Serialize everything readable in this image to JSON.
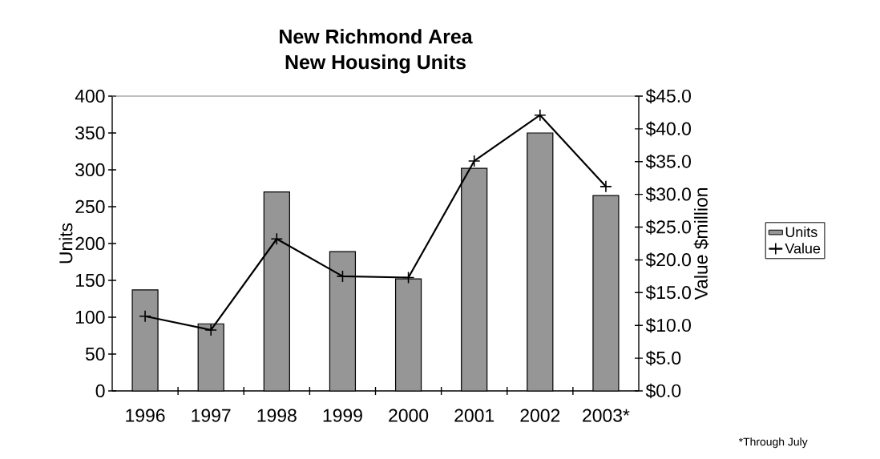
{
  "chart_data": {
    "type": "bar",
    "title": "New Richmond Area\nNew Housing Units",
    "categories": [
      "1996",
      "1997",
      "1998",
      "1999",
      "2000",
      "2001",
      "2002",
      "2003*"
    ],
    "series": [
      {
        "name": "Units",
        "color": "#969696",
        "values": [
          137,
          91,
          270,
          189,
          152,
          302,
          350,
          265
        ]
      },
      {
        "name": "Value",
        "type": "line",
        "axis": "y2",
        "color": "#000000",
        "marker": "cross",
        "values": [
          11.4,
          9.3,
          23.2,
          17.5,
          17.3,
          35.1,
          42.1,
          31.2
        ]
      }
    ],
    "ylabel": "Units",
    "y2label": "Value $million",
    "ylim": [
      0,
      400
    ],
    "yticks": [
      0,
      50,
      100,
      150,
      200,
      250,
      300,
      350,
      400
    ],
    "y2lim": [
      0,
      45
    ],
    "y2ticks": [
      {
        "value": 0,
        "label": "$0.0"
      },
      {
        "value": 5,
        "label": "$5.0"
      },
      {
        "value": 10,
        "label": "$10.0"
      },
      {
        "value": 15,
        "label": "$15.0"
      },
      {
        "value": 20,
        "label": "$20.0"
      },
      {
        "value": 25,
        "label": "$25.0"
      },
      {
        "value": 30,
        "label": "$30.0"
      },
      {
        "value": 35,
        "label": "$35.0"
      },
      {
        "value": 40,
        "label": "$40.0"
      },
      {
        "value": 45,
        "label": "$45.0"
      }
    ],
    "legend": "right",
    "annotations": [
      "*Through July"
    ]
  }
}
